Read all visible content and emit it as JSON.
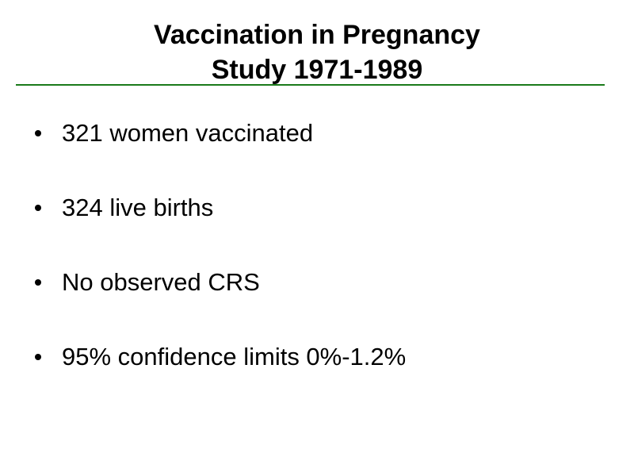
{
  "slide": {
    "title_line_1": "Vaccination in Pregnancy",
    "title_line_2": "Study 1971-1989",
    "rule_color": "#1a7a1a",
    "bullets": [
      {
        "text": "321 women vaccinated"
      },
      {
        "text": "324 live births"
      },
      {
        "text": "No observed CRS"
      },
      {
        "text": "95% confidence limits 0%-1.2%"
      }
    ]
  }
}
